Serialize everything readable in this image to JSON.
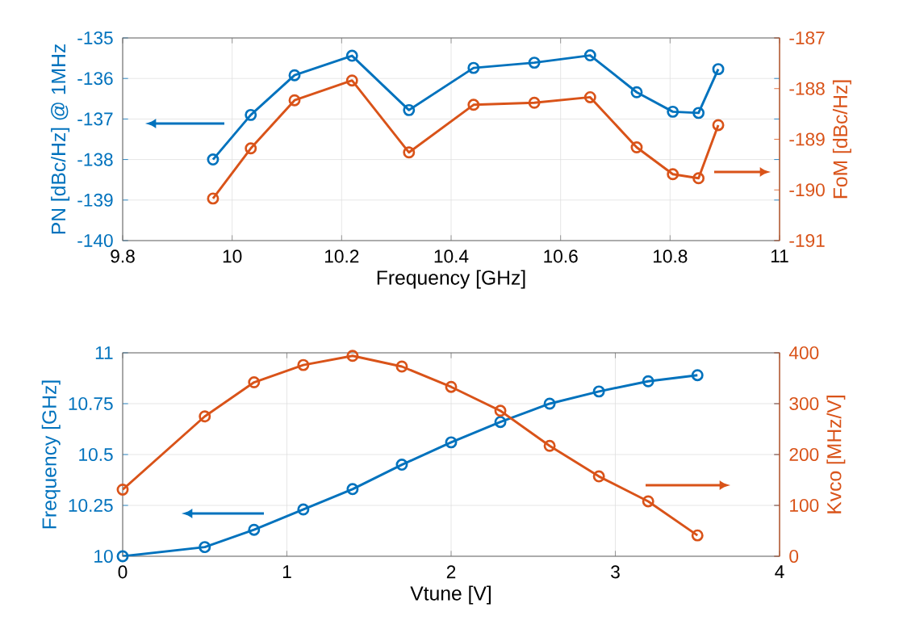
{
  "chart_data": [
    {
      "type": "line",
      "x": [
        9.965,
        10.034,
        10.114,
        10.219,
        10.323,
        10.441,
        10.552,
        10.654,
        10.739,
        10.805,
        10.852,
        10.888
      ],
      "series": [
        {
          "color": "#0072bd",
          "values": [
            -138.0,
            -136.9,
            -135.92,
            -135.44,
            -136.78,
            -135.74,
            -135.61,
            -135.43,
            -136.34,
            -136.82,
            -136.85,
            -135.77
          ]
        },
        {
          "color": "#d95319",
          "axis": "y2",
          "values": [
            -190.17,
            -189.18,
            -188.23,
            -187.84,
            -189.26,
            -188.32,
            -188.28,
            -188.17,
            -189.16,
            -189.69,
            -189.77,
            -188.72
          ]
        }
      ],
      "xlabel": "Frequency [GHz]",
      "ylabel": "PN [dBc/Hz] @ 1MHz",
      "y2label": "FoM [dBc/Hz]",
      "xlim": [
        9.8,
        11
      ],
      "xticks": [
        9.8,
        10,
        10.2,
        10.4,
        10.6,
        10.8,
        11
      ],
      "ylim": [
        -140,
        -135
      ],
      "yticks": [
        -140,
        -139,
        -138,
        -137,
        -136,
        -135
      ],
      "y2lim": [
        -191,
        -187
      ],
      "y2ticks": [
        -191,
        -190,
        -189,
        -188,
        -187
      ],
      "grid": true,
      "marker": "circle"
    },
    {
      "type": "line",
      "x": [
        0,
        0.5,
        0.8,
        1.1,
        1.4,
        1.7,
        2.0,
        2.3,
        2.6,
        2.9,
        3.2,
        3.5
      ],
      "series": [
        {
          "color": "#0072bd",
          "values": [
            10.0,
            10.045,
            10.13,
            10.23,
            10.33,
            10.45,
            10.56,
            10.66,
            10.75,
            10.81,
            10.86,
            10.89
          ]
        },
        {
          "color": "#d95319",
          "axis": "y2",
          "values": [
            131,
            275,
            342,
            376,
            394,
            373,
            333,
            286,
            217,
            157,
            108,
            41
          ]
        }
      ],
      "xlabel": "Vtune [V]",
      "ylabel": "Frequency [GHz]",
      "y2label": "Kvco [MHz/V]",
      "xlim": [
        0,
        4
      ],
      "xticks": [
        0,
        1,
        2,
        3,
        4
      ],
      "ylim": [
        10,
        11
      ],
      "yticks": [
        10,
        10.25,
        10.5,
        10.75,
        11
      ],
      "y2lim": [
        0,
        400
      ],
      "y2ticks": [
        0,
        100,
        200,
        300,
        400
      ],
      "grid": true,
      "marker": "circle"
    }
  ]
}
